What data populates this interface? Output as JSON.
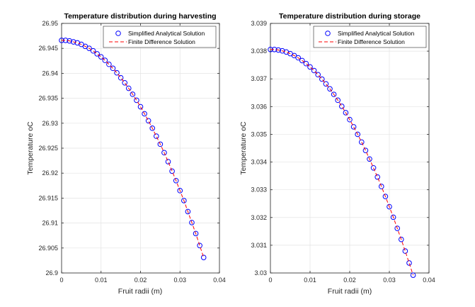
{
  "chart_data": [
    {
      "type": "line",
      "title": "Temperature distribution during harvesting",
      "xlabel": "Fruit radii (m)",
      "ylabel": "Temperature oC",
      "xlim": [
        0,
        0.04
      ],
      "ylim": [
        26.9,
        26.95
      ],
      "xticks": [
        0,
        0.01,
        0.02,
        0.03,
        0.04
      ],
      "xtick_labels": [
        "0",
        "0.01",
        "0.02",
        "0.03",
        "0.04"
      ],
      "yticks": [
        26.9,
        26.905,
        26.91,
        26.915,
        26.92,
        26.925,
        26.93,
        26.935,
        26.94,
        26.945,
        26.95
      ],
      "ytick_labels": [
        "26.9",
        "26.905",
        "26.91",
        "26.915",
        "26.92",
        "26.925",
        "26.93",
        "26.935",
        "26.94",
        "26.945",
        "26.95"
      ],
      "grid": true,
      "legend_position": "top-right",
      "x": [
        0,
        0.001,
        0.002,
        0.003,
        0.004,
        0.005,
        0.006,
        0.007,
        0.008,
        0.009,
        0.01,
        0.011,
        0.012,
        0.013,
        0.014,
        0.015,
        0.016,
        0.017,
        0.018,
        0.019,
        0.02,
        0.021,
        0.022,
        0.023,
        0.024,
        0.025,
        0.026,
        0.027,
        0.028,
        0.029,
        0.03,
        0.031,
        0.032,
        0.033,
        0.034,
        0.035,
        0.036
      ],
      "series": [
        {
          "name": "Simplified Analytical Solution",
          "style": "markers",
          "color": "#0000ff",
          "values": [
            26.9466,
            26.9466,
            26.9465,
            26.9463,
            26.9461,
            26.9458,
            26.9454,
            26.945,
            26.9445,
            26.9439,
            26.9433,
            26.9426,
            26.9418,
            26.941,
            26.9401,
            26.9391,
            26.9381,
            26.937,
            26.9358,
            26.9346,
            26.9333,
            26.9319,
            26.9305,
            26.929,
            26.9274,
            26.9258,
            26.9241,
            26.9223,
            26.9204,
            26.9185,
            26.9165,
            26.9145,
            26.9123,
            26.9101,
            26.9079,
            26.9055,
            26.9031
          ]
        },
        {
          "name": "Finite Difference Solution",
          "style": "dashed",
          "color": "#ff0000",
          "values": [
            26.9466,
            26.9466,
            26.9465,
            26.9463,
            26.9461,
            26.9458,
            26.9454,
            26.945,
            26.9445,
            26.9439,
            26.9433,
            26.9426,
            26.9418,
            26.941,
            26.9401,
            26.9391,
            26.9381,
            26.937,
            26.9358,
            26.9346,
            26.9333,
            26.9319,
            26.9305,
            26.929,
            26.9274,
            26.9258,
            26.9241,
            26.9223,
            26.9204,
            26.9185,
            26.9165,
            26.9145,
            26.9123,
            26.9101,
            26.9079,
            26.9055,
            26.9031
          ]
        }
      ]
    },
    {
      "type": "line",
      "title": "Temperature distribution during storage",
      "xlabel": "Fruit radii (m)",
      "ylabel": "Temperature oC",
      "xlim": [
        0,
        0.04
      ],
      "ylim": [
        3.03,
        3.039
      ],
      "xticks": [
        0,
        0.01,
        0.02,
        0.03,
        0.04
      ],
      "xtick_labels": [
        "0",
        "0.01",
        "0.02",
        "0.03",
        "0.04"
      ],
      "yticks": [
        3.03,
        3.031,
        3.032,
        3.033,
        3.034,
        3.035,
        3.036,
        3.037,
        3.038,
        3.039
      ],
      "ytick_labels": [
        "3.03",
        "3.031",
        "3.032",
        "3.033",
        "3.034",
        "3.035",
        "3.036",
        "3.037",
        "3.038",
        "3.039"
      ],
      "grid": true,
      "legend_position": "top-right",
      "x": [
        0,
        0.001,
        0.002,
        0.003,
        0.004,
        0.005,
        0.006,
        0.007,
        0.008,
        0.009,
        0.01,
        0.011,
        0.012,
        0.013,
        0.014,
        0.015,
        0.016,
        0.017,
        0.018,
        0.019,
        0.02,
        0.021,
        0.022,
        0.023,
        0.024,
        0.025,
        0.026,
        0.027,
        0.028,
        0.029,
        0.03,
        0.031,
        0.032,
        0.033,
        0.034,
        0.035,
        0.036
      ],
      "series": [
        {
          "name": "Simplified Analytical Solution",
          "style": "markers",
          "color": "#0000ff",
          "values": [
            3.03806,
            3.03806,
            3.03804,
            3.03801,
            3.03797,
            3.03791,
            3.03784,
            3.03776,
            3.03766,
            3.03755,
            3.03743,
            3.0373,
            3.03715,
            3.03699,
            3.03682,
            3.03664,
            3.03644,
            3.03623,
            3.03601,
            3.03578,
            3.03553,
            3.03527,
            3.035,
            3.03472,
            3.03442,
            3.03411,
            3.03379,
            3.03346,
            3.03312,
            3.03276,
            3.03239,
            3.03201,
            3.03161,
            3.03121,
            3.03079,
            3.03036,
            3.02992
          ]
        },
        {
          "name": "Finite Difference Solution",
          "style": "dashed",
          "color": "#ff0000",
          "values": [
            3.03806,
            3.03806,
            3.03804,
            3.03801,
            3.03797,
            3.03791,
            3.03784,
            3.03776,
            3.03766,
            3.03755,
            3.03743,
            3.0373,
            3.03715,
            3.03699,
            3.03682,
            3.03664,
            3.03644,
            3.03623,
            3.03601,
            3.03578,
            3.03553,
            3.03527,
            3.035,
            3.03472,
            3.03442,
            3.03411,
            3.03379,
            3.03346,
            3.03312,
            3.03276,
            3.03239,
            3.03201,
            3.03161,
            3.03121,
            3.03079,
            3.03036,
            3.02992
          ]
        }
      ]
    }
  ]
}
